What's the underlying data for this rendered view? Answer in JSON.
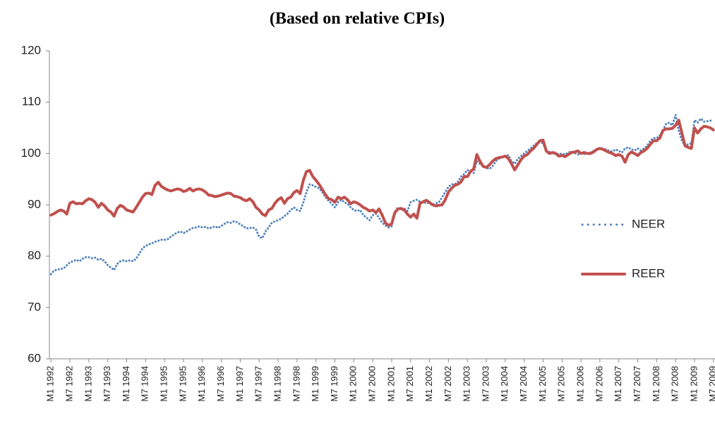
{
  "chart_data": {
    "type": "line",
    "title": "(Based on relative CPIs)",
    "categories": [
      "M1 1992",
      null,
      null,
      null,
      null,
      null,
      "M7 1992",
      null,
      null,
      null,
      null,
      null,
      "M1 1993",
      null,
      null,
      null,
      null,
      null,
      "M7 1993",
      null,
      null,
      null,
      null,
      null,
      "M1 1994",
      null,
      null,
      null,
      null,
      null,
      "M7 1994",
      null,
      null,
      null,
      null,
      null,
      "M1 1995",
      null,
      null,
      null,
      null,
      null,
      "M7 1995",
      null,
      null,
      null,
      null,
      null,
      "M1 1996",
      null,
      null,
      null,
      null,
      null,
      "M7 1996",
      null,
      null,
      null,
      null,
      null,
      "M1 1997",
      null,
      null,
      null,
      null,
      null,
      "M7 1997",
      null,
      null,
      null,
      null,
      null,
      "M1 1998",
      null,
      null,
      null,
      null,
      null,
      "M7 1998",
      null,
      null,
      null,
      null,
      null,
      "M1 1999",
      null,
      null,
      null,
      null,
      null,
      "M7 1999",
      null,
      null,
      null,
      null,
      null,
      "M1 2000",
      null,
      null,
      null,
      null,
      null,
      "M7 2000",
      null,
      null,
      null,
      null,
      null,
      "M1 2001",
      null,
      null,
      null,
      null,
      null,
      "M7 2001",
      null,
      null,
      null,
      null,
      null,
      "M1 2002",
      null,
      null,
      null,
      null,
      null,
      "M7 2002",
      null,
      null,
      null,
      null,
      null,
      "M1 2003",
      null,
      null,
      null,
      null,
      null,
      "M7 2003",
      null,
      null,
      null,
      null,
      null,
      "M1 2004",
      null,
      null,
      null,
      null,
      null,
      "M7 2004",
      null,
      null,
      null,
      null,
      null,
      "M1 2005",
      null,
      null,
      null,
      null,
      null,
      "M7 2005",
      null,
      null,
      null,
      null,
      null,
      "M1 2006",
      null,
      null,
      null,
      null,
      null,
      "M7 2006",
      null,
      null,
      null,
      null,
      null,
      "M1 2007",
      null,
      null,
      null,
      null,
      null,
      "M7 2007",
      null,
      null,
      null,
      null,
      null,
      "M1 2008",
      null,
      null,
      null,
      null,
      null,
      "M7 2008",
      null,
      null,
      null,
      null,
      null,
      "M1 2009",
      null,
      null,
      null,
      null,
      null,
      "M7 2009"
    ],
    "series": [
      {
        "name": "NEER",
        "color": "#4f81bd",
        "style": "dotted",
        "values": [
          76.5,
          77.2,
          77.4,
          77.5,
          77.6,
          78.2,
          78.8,
          79.0,
          79.3,
          79.0,
          79.5,
          79.8,
          79.8,
          79.6,
          79.7,
          79.3,
          79.5,
          79.0,
          78.2,
          77.8,
          77.3,
          78.5,
          79.0,
          79.2,
          79.0,
          79.2,
          79.0,
          79.5,
          80.5,
          81.5,
          82.0,
          82.3,
          82.5,
          82.8,
          83.0,
          83.2,
          83.2,
          83.3,
          83.8,
          84.2,
          84.6,
          84.8,
          84.5,
          84.8,
          85.2,
          85.5,
          85.6,
          85.8,
          85.6,
          85.7,
          85.4,
          85.6,
          85.8,
          85.5,
          85.9,
          86.3,
          86.6,
          86.5,
          86.8,
          86.6,
          86.2,
          85.8,
          85.4,
          85.5,
          85.6,
          85.2,
          83.8,
          83.5,
          84.8,
          85.6,
          86.5,
          86.8,
          87.0,
          87.3,
          87.8,
          88.3,
          89.0,
          89.5,
          89.0,
          88.8,
          90.5,
          92.5,
          94.0,
          93.8,
          93.5,
          93.2,
          92.5,
          91.5,
          90.8,
          90.2,
          89.5,
          90.5,
          91.0,
          90.5,
          90.2,
          89.5,
          89.0,
          88.8,
          89.0,
          88.0,
          87.5,
          87.0,
          88.0,
          88.3,
          87.5,
          86.5,
          86.0,
          85.6,
          85.8,
          88.5,
          89.5,
          89.0,
          89.3,
          88.8,
          90.5,
          90.8,
          91.0,
          90.6,
          90.3,
          90.5,
          90.2,
          90.0,
          90.3,
          90.5,
          91.5,
          92.5,
          93.5,
          94.0,
          94.0,
          94.5,
          95.5,
          96.0,
          96.8,
          96.5,
          96.2,
          98.5,
          98.0,
          97.5,
          97.2,
          97.0,
          97.5,
          98.5,
          99.0,
          99.3,
          99.5,
          99.7,
          98.5,
          98.0,
          99.0,
          99.5,
          100.0,
          100.5,
          101.0,
          101.5,
          102.0,
          102.2,
          102.0,
          100.5,
          100.3,
          100.0,
          100.2,
          99.8,
          100.0,
          99.8,
          100.2,
          100.4,
          100.1,
          99.8,
          100.0,
          99.9,
          100.0,
          100.2,
          100.5,
          100.8,
          101.0,
          101.0,
          100.8,
          100.5,
          100.4,
          100.8,
          100.5,
          100.2,
          101.0,
          101.2,
          100.8,
          100.6,
          101.0,
          100.6,
          101.0,
          101.5,
          102.5,
          103.0,
          103.0,
          103.5,
          104.5,
          105.8,
          106.0,
          105.5,
          107.5,
          104.5,
          102.5,
          101.5,
          101.8,
          102.0,
          106.5,
          106.0,
          106.8,
          106.2,
          106.3,
          106.4,
          106.5
        ]
      },
      {
        "name": "REER",
        "color": "#c0504d",
        "style": "solid",
        "values": [
          88.0,
          88.3,
          88.7,
          89.0,
          88.8,
          88.2,
          90.3,
          90.6,
          90.2,
          90.3,
          90.2,
          90.8,
          91.2,
          91.0,
          90.5,
          89.5,
          90.3,
          89.8,
          89.0,
          88.6,
          87.8,
          89.3,
          89.9,
          89.6,
          89.0,
          88.8,
          88.6,
          89.5,
          90.5,
          91.5,
          92.2,
          92.3,
          92.0,
          93.8,
          94.4,
          93.6,
          93.2,
          92.9,
          92.7,
          92.9,
          93.1,
          93.0,
          92.6,
          92.8,
          93.2,
          92.7,
          93.0,
          93.1,
          92.9,
          92.5,
          91.9,
          91.8,
          91.6,
          91.7,
          91.9,
          92.1,
          92.3,
          92.2,
          91.7,
          91.6,
          91.4,
          91.0,
          90.8,
          91.2,
          90.6,
          89.5,
          89.0,
          88.2,
          87.9,
          89.0,
          89.3,
          90.3,
          91.0,
          91.4,
          90.3,
          91.2,
          91.5,
          92.4,
          92.8,
          92.2,
          94.8,
          96.5,
          96.7,
          95.5,
          94.8,
          94.0,
          93.0,
          92.0,
          91.2,
          91.0,
          90.5,
          91.5,
          91.2,
          91.5,
          91.0,
          90.2,
          90.6,
          90.4,
          90.0,
          89.5,
          89.2,
          88.8,
          89.0,
          88.5,
          89.2,
          88.0,
          86.5,
          86.0,
          86.3,
          88.5,
          89.2,
          89.3,
          89.0,
          88.2,
          87.6,
          88.2,
          87.4,
          90.3,
          90.6,
          90.9,
          90.5,
          90.0,
          89.8,
          89.9,
          90.0,
          91.0,
          92.5,
          93.2,
          93.8,
          94.0,
          94.5,
          95.5,
          95.5,
          96.5,
          97.0,
          99.8,
          98.5,
          97.5,
          97.3,
          97.8,
          98.5,
          99.0,
          99.2,
          99.3,
          99.5,
          99.0,
          98.0,
          96.8,
          97.8,
          98.8,
          99.5,
          99.8,
          100.5,
          101.0,
          101.8,
          102.5,
          102.6,
          100.5,
          100.0,
          100.2,
          100.0,
          99.5,
          99.6,
          99.4,
          99.8,
          100.2,
          100.3,
          100.5,
          100.0,
          100.2,
          100.0,
          100.0,
          100.3,
          100.8,
          101.0,
          100.8,
          100.5,
          100.2,
          100.0,
          99.6,
          99.8,
          99.5,
          98.3,
          99.8,
          100.3,
          100.0,
          99.6,
          100.2,
          100.5,
          101.0,
          101.8,
          102.5,
          102.5,
          103.0,
          104.5,
          104.8,
          104.8,
          104.9,
          105.5,
          106.5,
          104.0,
          101.5,
          101.2,
          101.0,
          105.0,
          104.0,
          104.8,
          105.3,
          105.2,
          105.0,
          104.6
        ]
      }
    ],
    "ylim": [
      60,
      120
    ],
    "yticks": [
      60,
      70,
      80,
      90,
      100,
      110,
      120
    ],
    "grid": false,
    "legend": "right"
  }
}
